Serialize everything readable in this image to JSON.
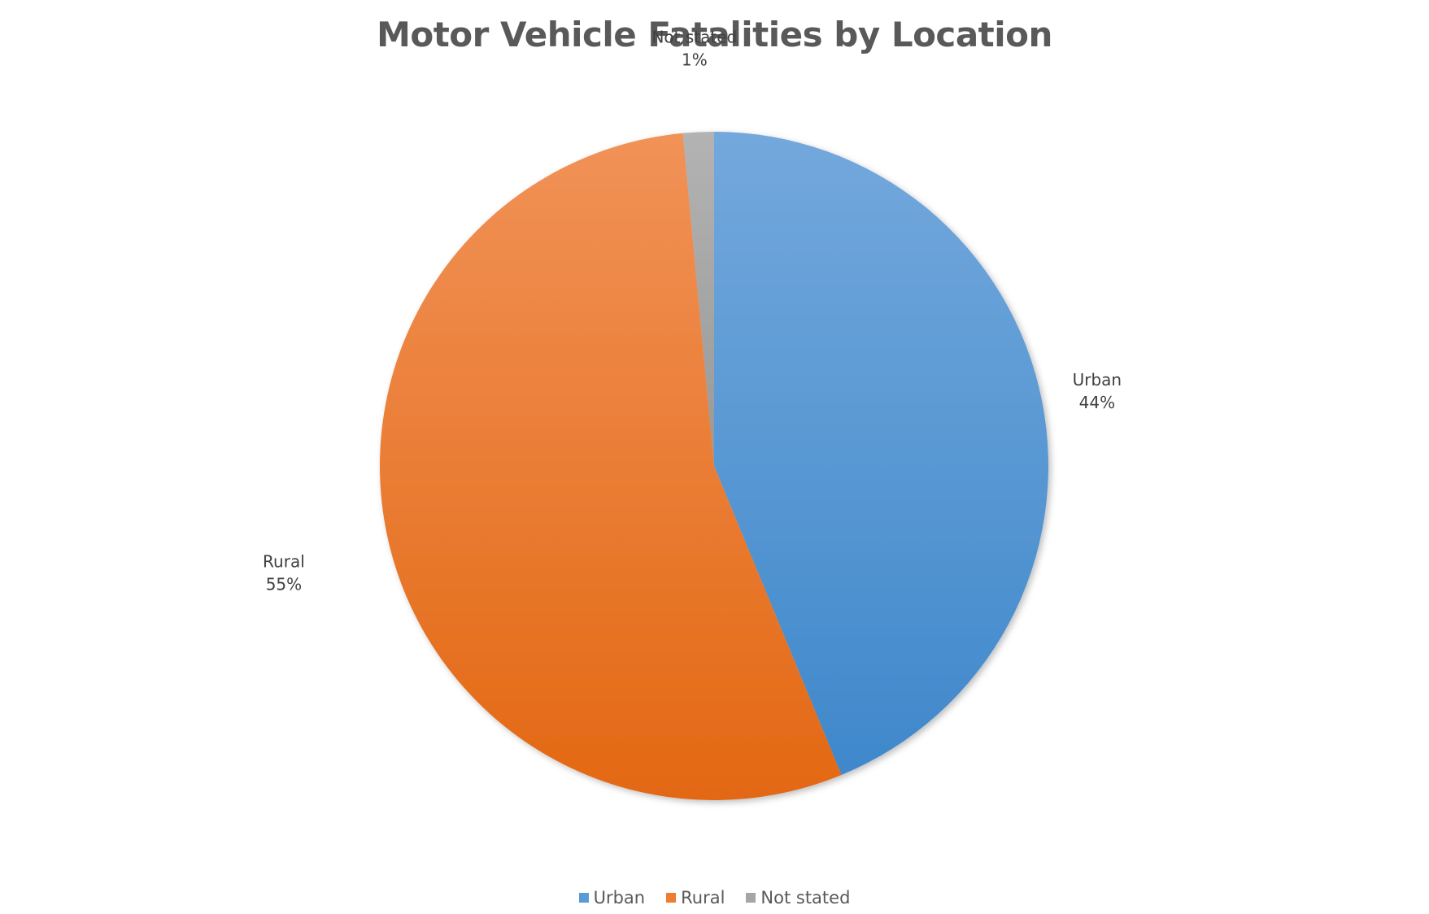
{
  "chart_data": {
    "type": "pie",
    "title": "Motor Vehicle Fatalities by Location",
    "slices": [
      {
        "name": "Urban",
        "value": 44,
        "label": "44%",
        "color": "#5B9BD5"
      },
      {
        "name": "Rural",
        "value": 55,
        "label": "55%",
        "color": "#ED7D31"
      },
      {
        "name": "Not stated",
        "value": 1.5,
        "label": "1%",
        "color": "#A5A5A5"
      }
    ],
    "legend_position": "bottom"
  }
}
